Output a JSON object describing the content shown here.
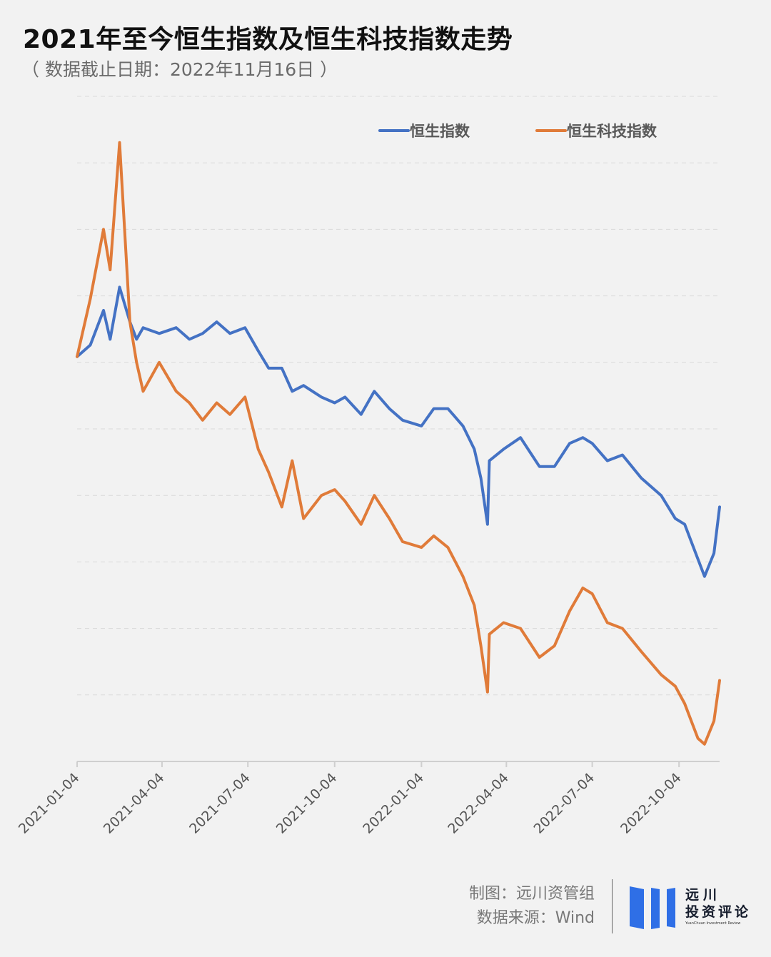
{
  "header": {
    "title": "2021年至今恒生指数及恒生科技指数走势",
    "subtitle": "（ 数据截止日期：2022年11月16日 ）"
  },
  "footer": {
    "credit_line1": "制图：远川资管组",
    "credit_line2": "数据来源：Wind",
    "logo_line1": "远川",
    "logo_line2": "投资评论",
    "logo_line3": "YuanChuan Investment Review",
    "logo_color": "#2f6fe6"
  },
  "chart_data": {
    "type": "line",
    "title": "2021年至今恒生指数及恒生科技指数走势",
    "xlabel": "",
    "ylabel": "",
    "x_tick_labels": [
      "2021-01-04",
      "2021-04-04",
      "2021-07-04",
      "2021-10-04",
      "2022-01-04",
      "2022-04-04",
      "2022-07-04",
      "2022-10-04"
    ],
    "x_range": [
      "2021-01-04",
      "2022-11-16"
    ],
    "y_axis": "unlabeled (relative index level, start = 1.00)",
    "ylim": [
      0.3,
      1.45
    ],
    "grid": true,
    "legend": "top-right",
    "series": [
      {
        "name": "恒生指数",
        "color": "#4472c4",
        "x": [
          "2021-01-04",
          "2021-01-18",
          "2021-02-01",
          "2021-02-08",
          "2021-02-18",
          "2021-03-01",
          "2021-03-08",
          "2021-03-15",
          "2021-04-01",
          "2021-04-19",
          "2021-05-03",
          "2021-05-17",
          "2021-06-01",
          "2021-06-15",
          "2021-07-01",
          "2021-07-15",
          "2021-07-26",
          "2021-08-09",
          "2021-08-20",
          "2021-09-01",
          "2021-09-20",
          "2021-10-04",
          "2021-10-15",
          "2021-11-01",
          "2021-11-15",
          "2021-12-01",
          "2021-12-15",
          "2022-01-04",
          "2022-01-17",
          "2022-02-01",
          "2022-02-17",
          "2022-03-01",
          "2022-03-08",
          "2022-03-15",
          "2022-03-17",
          "2022-04-01",
          "2022-04-19",
          "2022-05-09",
          "2022-05-25",
          "2022-06-10",
          "2022-06-24",
          "2022-07-04",
          "2022-07-20",
          "2022-08-05",
          "2022-08-25",
          "2022-09-15",
          "2022-09-30",
          "2022-10-10",
          "2022-10-24",
          "2022-10-31",
          "2022-11-10",
          "2022-11-16"
        ],
        "values": [
          1.0,
          1.02,
          1.08,
          1.03,
          1.12,
          1.06,
          1.03,
          1.05,
          1.04,
          1.05,
          1.03,
          1.04,
          1.06,
          1.04,
          1.05,
          1.01,
          0.98,
          0.98,
          0.94,
          0.95,
          0.93,
          0.92,
          0.93,
          0.9,
          0.94,
          0.91,
          0.89,
          0.88,
          0.91,
          0.91,
          0.88,
          0.84,
          0.79,
          0.71,
          0.82,
          0.84,
          0.86,
          0.81,
          0.81,
          0.85,
          0.86,
          0.85,
          0.82,
          0.83,
          0.79,
          0.76,
          0.72,
          0.71,
          0.65,
          0.62,
          0.66,
          0.74
        ]
      },
      {
        "name": "恒生科技指数",
        "color": "#e07b39",
        "x": [
          "2021-01-04",
          "2021-01-18",
          "2021-02-01",
          "2021-02-08",
          "2021-02-18",
          "2021-03-01",
          "2021-03-08",
          "2021-03-15",
          "2021-04-01",
          "2021-04-19",
          "2021-05-03",
          "2021-05-17",
          "2021-06-01",
          "2021-06-15",
          "2021-07-01",
          "2021-07-15",
          "2021-07-26",
          "2021-08-09",
          "2021-08-20",
          "2021-09-01",
          "2021-09-20",
          "2021-10-04",
          "2021-10-15",
          "2021-11-01",
          "2021-11-15",
          "2021-12-01",
          "2021-12-15",
          "2022-01-04",
          "2022-01-17",
          "2022-02-01",
          "2022-02-17",
          "2022-03-01",
          "2022-03-08",
          "2022-03-15",
          "2022-03-17",
          "2022-04-01",
          "2022-04-19",
          "2022-05-09",
          "2022-05-25",
          "2022-06-10",
          "2022-06-24",
          "2022-07-04",
          "2022-07-20",
          "2022-08-05",
          "2022-08-25",
          "2022-09-15",
          "2022-09-30",
          "2022-10-10",
          "2022-10-24",
          "2022-10-31",
          "2022-11-10",
          "2022-11-16"
        ],
        "values": [
          1.0,
          1.1,
          1.22,
          1.15,
          1.37,
          1.06,
          0.99,
          0.94,
          0.99,
          0.94,
          0.92,
          0.89,
          0.92,
          0.9,
          0.93,
          0.84,
          0.8,
          0.74,
          0.82,
          0.72,
          0.76,
          0.77,
          0.75,
          0.71,
          0.76,
          0.72,
          0.68,
          0.67,
          0.69,
          0.67,
          0.62,
          0.57,
          0.5,
          0.42,
          0.52,
          0.54,
          0.53,
          0.48,
          0.5,
          0.56,
          0.6,
          0.59,
          0.54,
          0.53,
          0.49,
          0.45,
          0.43,
          0.4,
          0.34,
          0.33,
          0.37,
          0.44
        ]
      }
    ]
  }
}
